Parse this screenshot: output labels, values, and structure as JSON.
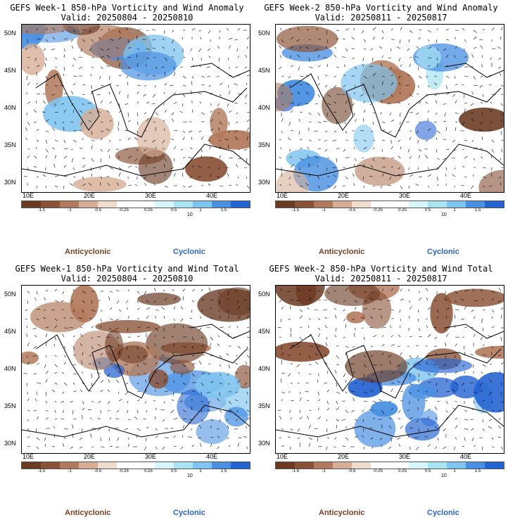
{
  "panels": [
    {
      "title": "GEFS Week-1 850-hPa Vorticity and Wind Anomaly",
      "valid": "Valid: 20250804 - 20250810",
      "type": "anomaly"
    },
    {
      "title": "GEFS Week-2 850-hPa Vorticity and Wind Anomaly",
      "valid": "Valid: 20250811 - 20250817",
      "type": "anomaly"
    },
    {
      "title": "GEFS Week-1 850-hPa Vorticity and Wind Total",
      "valid": "Valid: 20250804 - 20250810",
      "type": "total"
    },
    {
      "title": "GEFS Week-2 850-hPa Vorticity and Wind Total",
      "valid": "Valid: 20250811 - 20250817",
      "type": "total"
    }
  ],
  "latitude_labels": [
    "50N",
    "45N",
    "40N",
    "35N",
    "30N"
  ],
  "longitude_labels": [
    "10E",
    "20E",
    "30E",
    "40E"
  ],
  "colorbar": {
    "ticks": [
      "-1.5",
      "-1",
      "-0.5",
      "-0.25",
      "0.25",
      "0.5",
      "1",
      "1.5"
    ],
    "unit": "10",
    "colors": [
      "#6b3a23",
      "#8a5237",
      "#b27a5c",
      "#d6ae96",
      "#efdccd",
      "#ffffff",
      "#ffffff",
      "#d6f6fb",
      "#a9e4f3",
      "#7fc4ef",
      "#4a90e2",
      "#2363d1"
    ]
  },
  "legend": {
    "anticyclonic": "Anticyclonic",
    "cyclonic": "Cyclonic"
  }
}
